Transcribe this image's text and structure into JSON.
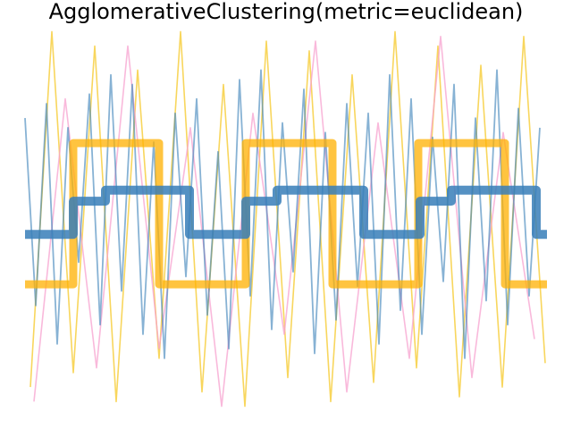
{
  "chart_data": {
    "type": "line",
    "title": "AgglomerativeClustering(metric=euclidean)",
    "xlim": [
      0,
      584
    ],
    "ylim": [
      -4,
      4
    ],
    "series": [
      {
        "color": "#f5c518",
        "x": [
          6,
          30,
          54,
          78,
          102,
          126,
          150,
          174,
          198,
          222,
          246,
          270,
          294,
          318,
          342,
          366,
          390,
          414,
          438,
          462,
          486,
          510,
          534,
          558,
          582
        ],
        "values": [
          -3.5,
          3.9,
          -3.2,
          3.6,
          -3.8,
          3.1,
          -2.9,
          3.9,
          -3.6,
          2.8,
          -3.9,
          3.7,
          -3.3,
          3.5,
          -3.8,
          3.0,
          -3.4,
          3.9,
          -3.1,
          3.6,
          -3.7,
          3.2,
          -3.5,
          3.8,
          -3.0
        ]
      },
      {
        "color": "#f7a1cf",
        "x": [
          10,
          45,
          80,
          115,
          150,
          185,
          220,
          255,
          290,
          325,
          360,
          395,
          430,
          465,
          500,
          535,
          570
        ],
        "values": [
          -3.8,
          2.5,
          -3.1,
          3.6,
          -2.7,
          1.9,
          -3.9,
          2.2,
          -2.4,
          3.7,
          -3.6,
          2.0,
          -2.9,
          3.8,
          -3.3,
          1.8,
          -2.5
        ]
      },
      {
        "color": "#377eb8",
        "x": [
          0,
          12,
          24,
          36,
          48,
          60,
          72,
          84,
          96,
          108,
          120,
          132,
          144,
          156,
          168,
          180,
          192,
          204,
          216,
          228,
          240,
          252,
          264,
          276,
          288,
          300,
          312,
          324,
          336,
          348,
          360,
          372,
          384,
          396,
          408,
          420,
          432,
          444,
          456,
          468,
          480,
          492,
          504,
          516,
          528,
          540,
          552,
          564,
          576
        ],
        "values": [
          2.1,
          -1.8,
          2.4,
          -2.6,
          1.9,
          -0.9,
          2.6,
          -2.2,
          3.0,
          -1.5,
          2.8,
          -2.4,
          1.6,
          -2.9,
          2.2,
          -1.2,
          2.5,
          -2.0,
          1.4,
          -2.7,
          2.9,
          -1.6,
          3.1,
          -2.3,
          2.0,
          -1.1,
          2.7,
          -2.8,
          1.8,
          -2.1,
          2.4,
          -1.4,
          2.2,
          -2.6,
          3.0,
          -1.9,
          2.5,
          -2.4,
          1.7,
          -1.3,
          2.8,
          -2.9,
          2.1,
          -1.7,
          3.1,
          -2.2,
          2.3,
          -1.6,
          1.9
        ]
      },
      {
        "color": "#ffb000",
        "x": [
          0,
          54,
          54,
          150,
          150,
          247,
          247,
          344,
          344,
          440,
          440,
          537,
          537,
          584
        ],
        "values": [
          -1.36,
          -1.36,
          1.58,
          1.58,
          -1.36,
          -1.36,
          1.58,
          1.58,
          -1.36,
          -1.36,
          1.58,
          1.58,
          -1.36,
          -1.36
        ]
      },
      {
        "color": "#377eb8",
        "x": [
          0,
          54,
          54,
          90,
          90,
          184,
          184,
          247,
          247,
          282,
          282,
          379,
          379,
          442,
          442,
          477,
          477,
          572,
          572,
          584
        ],
        "values": [
          -0.32,
          -0.32,
          0.37,
          0.37,
          0.6,
          0.6,
          -0.32,
          -0.32,
          0.37,
          0.37,
          0.6,
          0.6,
          -0.32,
          -0.32,
          0.37,
          0.37,
          0.6,
          0.6,
          -0.32,
          -0.32
        ]
      }
    ]
  }
}
